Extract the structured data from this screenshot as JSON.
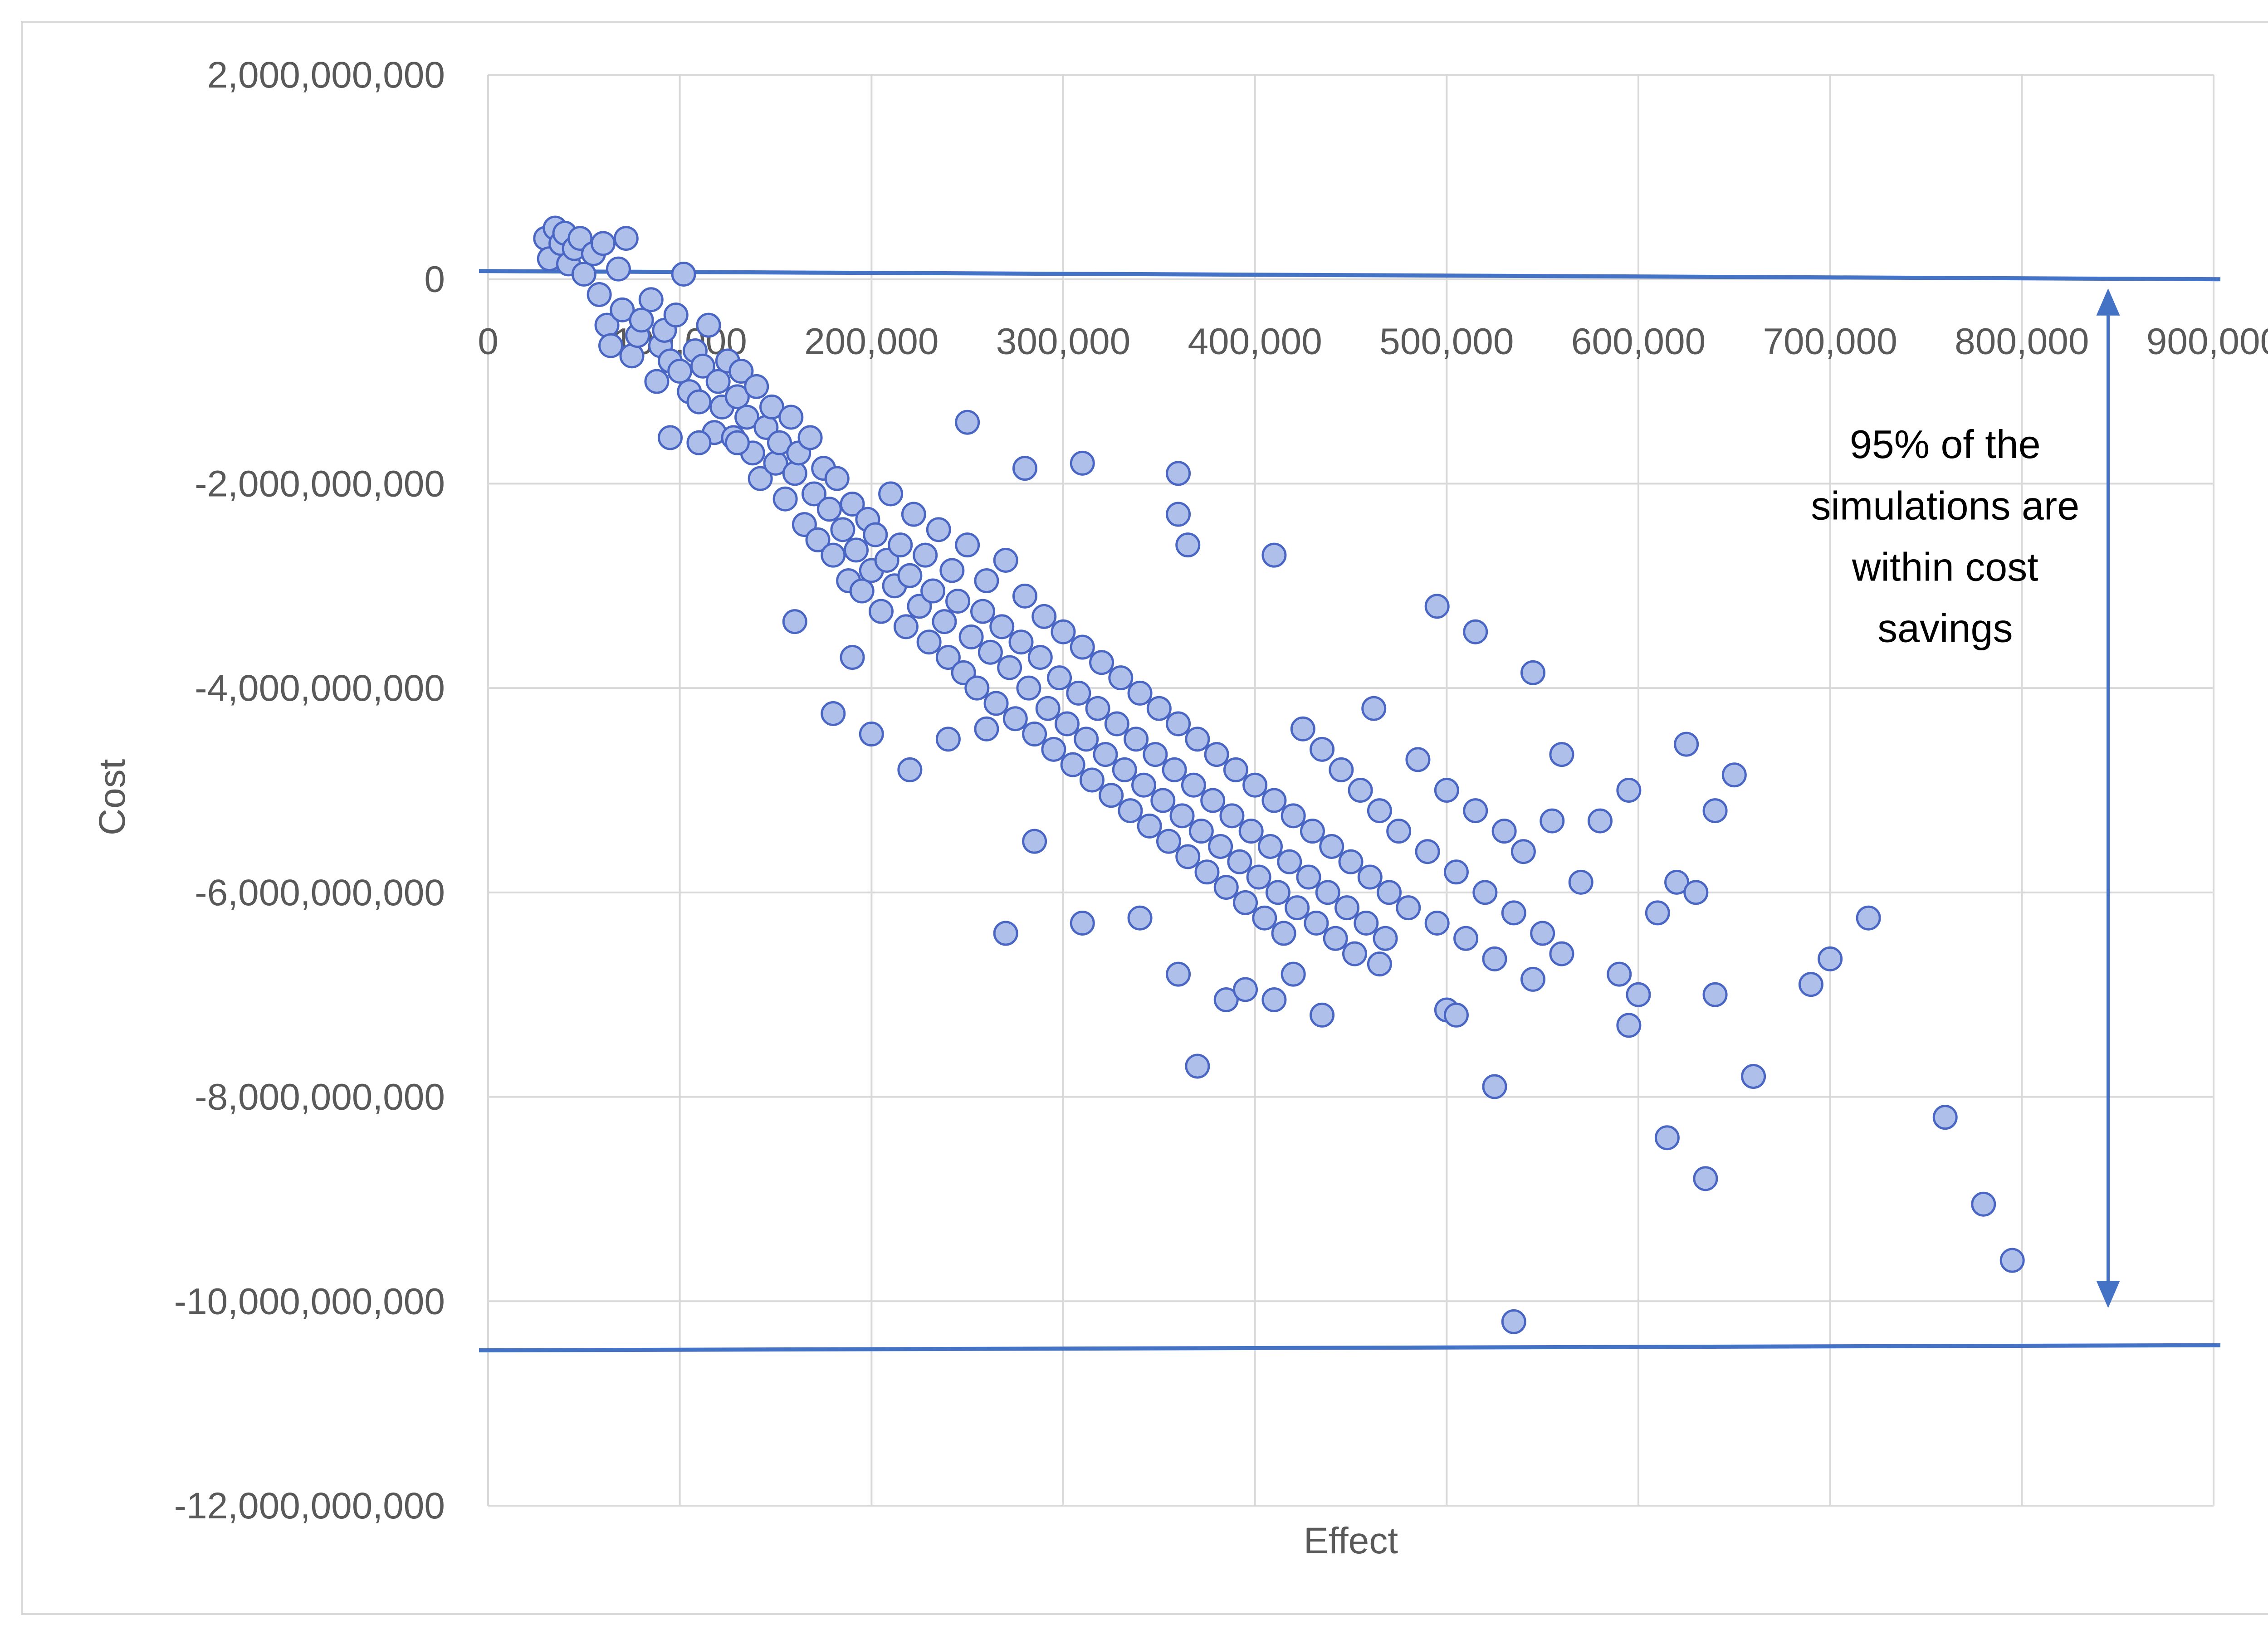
{
  "chart_data": {
    "type": "scatter",
    "title": "",
    "xlabel": "Effect",
    "ylabel": "Cost",
    "xlim": [
      0,
      900000
    ],
    "ylim": [
      -12000000000,
      2000000000
    ],
    "xticks": [
      0,
      100000,
      200000,
      300000,
      400000,
      500000,
      600000,
      700000,
      800000,
      900000
    ],
    "xtick_labels": [
      "0",
      "100,000",
      "200,000",
      "300,000",
      "400,000",
      "500,000",
      "600,000",
      "700,000",
      "800,000",
      "900,000"
    ],
    "yticks": [
      2000000000,
      0,
      -2000000000,
      -4000000000,
      -6000000000,
      -8000000000,
      -10000000000,
      -12000000000
    ],
    "ytick_labels": [
      "2,000,000,000",
      "0",
      "-2,000,000,000",
      "-4,000,000,000",
      "-6,000,000,000",
      "-8,000,000,000",
      "-10,000,000,000",
      "-12,000,000,000"
    ],
    "grid": true,
    "marker_color": "#aebfea",
    "marker_edge_color": "#4a66c4",
    "reference_lines": [
      {
        "name": "upper-bound",
        "x": [
          0,
          900000
        ],
        "y": [
          80000000,
          0
        ]
      },
      {
        "name": "lower-bound",
        "x": [
          0,
          900000
        ],
        "y": [
          -10480000000,
          -10430000000
        ]
      }
    ],
    "arrow": {
      "x": 845000,
      "y_start": 0,
      "y_end": -10000000000
    },
    "annotation_lines": [
      "95% of the",
      "simulations are",
      "within cost",
      "savings"
    ],
    "annotation_x": 760000,
    "annotation_y": [
      -1750000000,
      -2350000000,
      -2950000000,
      -3550000000
    ],
    "series": [
      {
        "name": "Simulations",
        "points": [
          [
            30000,
            400000000
          ],
          [
            32000,
            200000000
          ],
          [
            35000,
            500000000
          ],
          [
            38000,
            350000000
          ],
          [
            40000,
            450000000
          ],
          [
            42000,
            150000000
          ],
          [
            45000,
            300000000
          ],
          [
            48000,
            400000000
          ],
          [
            50000,
            50000000
          ],
          [
            55000,
            250000000
          ],
          [
            58000,
            -150000000
          ],
          [
            60000,
            350000000
          ],
          [
            62000,
            -450000000
          ],
          [
            64000,
            -650000000
          ],
          [
            68000,
            100000000
          ],
          [
            70000,
            -300000000
          ],
          [
            72000,
            400000000
          ],
          [
            75000,
            -750000000
          ],
          [
            78000,
            -550000000
          ],
          [
            80000,
            -400000000
          ],
          [
            85000,
            -200000000
          ],
          [
            88000,
            -1000000000
          ],
          [
            90000,
            -650000000
          ],
          [
            92000,
            -500000000
          ],
          [
            95000,
            -800000000
          ],
          [
            98000,
            -350000000
          ],
          [
            100000,
            -900000000
          ],
          [
            102000,
            50000000
          ],
          [
            105000,
            -1100000000
          ],
          [
            108000,
            -700000000
          ],
          [
            110000,
            -1200000000
          ],
          [
            112000,
            -850000000
          ],
          [
            115000,
            -450000000
          ],
          [
            118000,
            -1500000000
          ],
          [
            120000,
            -1000000000
          ],
          [
            122000,
            -1250000000
          ],
          [
            125000,
            -800000000
          ],
          [
            128000,
            -1550000000
          ],
          [
            130000,
            -1150000000
          ],
          [
            132000,
            -900000000
          ],
          [
            135000,
            -1350000000
          ],
          [
            138000,
            -1700000000
          ],
          [
            140000,
            -1050000000
          ],
          [
            142000,
            -1950000000
          ],
          [
            145000,
            -1450000000
          ],
          [
            148000,
            -1250000000
          ],
          [
            150000,
            -1800000000
          ],
          [
            152000,
            -1600000000
          ],
          [
            155000,
            -2150000000
          ],
          [
            158000,
            -1350000000
          ],
          [
            160000,
            -1900000000
          ],
          [
            162000,
            -1700000000
          ],
          [
            165000,
            -2400000000
          ],
          [
            168000,
            -1550000000
          ],
          [
            170000,
            -2100000000
          ],
          [
            172000,
            -2550000000
          ],
          [
            175000,
            -1850000000
          ],
          [
            178000,
            -2250000000
          ],
          [
            180000,
            -2700000000
          ],
          [
            182000,
            -1950000000
          ],
          [
            185000,
            -2450000000
          ],
          [
            188000,
            -2950000000
          ],
          [
            190000,
            -2200000000
          ],
          [
            192000,
            -2650000000
          ],
          [
            195000,
            -3050000000
          ],
          [
            198000,
            -2350000000
          ],
          [
            200000,
            -2850000000
          ],
          [
            202000,
            -2500000000
          ],
          [
            205000,
            -3250000000
          ],
          [
            208000,
            -2750000000
          ],
          [
            210000,
            -2100000000
          ],
          [
            212000,
            -3000000000
          ],
          [
            215000,
            -2600000000
          ],
          [
            218000,
            -3400000000
          ],
          [
            220000,
            -2900000000
          ],
          [
            222000,
            -2300000000
          ],
          [
            225000,
            -3200000000
          ],
          [
            228000,
            -2700000000
          ],
          [
            230000,
            -3550000000
          ],
          [
            232000,
            -3050000000
          ],
          [
            235000,
            -2450000000
          ],
          [
            238000,
            -3350000000
          ],
          [
            240000,
            -3700000000
          ],
          [
            242000,
            -2850000000
          ],
          [
            245000,
            -3150000000
          ],
          [
            248000,
            -3850000000
          ],
          [
            250000,
            -2600000000
          ],
          [
            252000,
            -3500000000
          ],
          [
            255000,
            -4000000000
          ],
          [
            258000,
            -3250000000
          ],
          [
            260000,
            -2950000000
          ],
          [
            262000,
            -3650000000
          ],
          [
            265000,
            -4150000000
          ],
          [
            268000,
            -3400000000
          ],
          [
            270000,
            -2750000000
          ],
          [
            272000,
            -3800000000
          ],
          [
            275000,
            -4300000000
          ],
          [
            278000,
            -3550000000
          ],
          [
            280000,
            -3100000000
          ],
          [
            282000,
            -4000000000
          ],
          [
            285000,
            -4450000000
          ],
          [
            288000,
            -3700000000
          ],
          [
            290000,
            -3300000000
          ],
          [
            292000,
            -4200000000
          ],
          [
            295000,
            -4600000000
          ],
          [
            298000,
            -3900000000
          ],
          [
            300000,
            -3450000000
          ],
          [
            302000,
            -4350000000
          ],
          [
            305000,
            -4750000000
          ],
          [
            308000,
            -4050000000
          ],
          [
            310000,
            -3600000000
          ],
          [
            312000,
            -4500000000
          ],
          [
            315000,
            -4900000000
          ],
          [
            318000,
            -4200000000
          ],
          [
            320000,
            -3750000000
          ],
          [
            322000,
            -4650000000
          ],
          [
            325000,
            -5050000000
          ],
          [
            328000,
            -4350000000
          ],
          [
            330000,
            -3900000000
          ],
          [
            332000,
            -4800000000
          ],
          [
            335000,
            -5200000000
          ],
          [
            338000,
            -4500000000
          ],
          [
            340000,
            -4050000000
          ],
          [
            342000,
            -4950000000
          ],
          [
            345000,
            -5350000000
          ],
          [
            348000,
            -4650000000
          ],
          [
            350000,
            -4200000000
          ],
          [
            352000,
            -5100000000
          ],
          [
            355000,
            -5500000000
          ],
          [
            358000,
            -4800000000
          ],
          [
            360000,
            -4350000000
          ],
          [
            362000,
            -5250000000
          ],
          [
            365000,
            -5650000000
          ],
          [
            368000,
            -4950000000
          ],
          [
            370000,
            -4500000000
          ],
          [
            372000,
            -5400000000
          ],
          [
            375000,
            -5800000000
          ],
          [
            378000,
            -5100000000
          ],
          [
            380000,
            -4650000000
          ],
          [
            382000,
            -5550000000
          ],
          [
            385000,
            -5950000000
          ],
          [
            388000,
            -5250000000
          ],
          [
            390000,
            -4800000000
          ],
          [
            392000,
            -5700000000
          ],
          [
            395000,
            -6100000000
          ],
          [
            398000,
            -5400000000
          ],
          [
            400000,
            -4950000000
          ],
          [
            402000,
            -5850000000
          ],
          [
            405000,
            -6250000000
          ],
          [
            408000,
            -5550000000
          ],
          [
            410000,
            -5100000000
          ],
          [
            412000,
            -6000000000
          ],
          [
            415000,
            -6400000000
          ],
          [
            418000,
            -5700000000
          ],
          [
            420000,
            -5250000000
          ],
          [
            422000,
            -6150000000
          ],
          [
            425000,
            -4400000000
          ],
          [
            428000,
            -5850000000
          ],
          [
            430000,
            -5400000000
          ],
          [
            432000,
            -6300000000
          ],
          [
            435000,
            -4600000000
          ],
          [
            438000,
            -6000000000
          ],
          [
            440000,
            -5550000000
          ],
          [
            442000,
            -6450000000
          ],
          [
            445000,
            -4800000000
          ],
          [
            448000,
            -6150000000
          ],
          [
            450000,
            -5700000000
          ],
          [
            452000,
            -6600000000
          ],
          [
            455000,
            -5000000000
          ],
          [
            458000,
            -6300000000
          ],
          [
            460000,
            -5850000000
          ],
          [
            462000,
            -4200000000
          ],
          [
            465000,
            -5200000000
          ],
          [
            468000,
            -6450000000
          ],
          [
            470000,
            -6000000000
          ],
          [
            475000,
            -5400000000
          ],
          [
            480000,
            -6150000000
          ],
          [
            485000,
            -4700000000
          ],
          [
            490000,
            -5600000000
          ],
          [
            495000,
            -6300000000
          ],
          [
            500000,
            -5000000000
          ],
          [
            505000,
            -5800000000
          ],
          [
            510000,
            -6450000000
          ],
          [
            515000,
            -5200000000
          ],
          [
            520000,
            -6000000000
          ],
          [
            525000,
            -6650000000
          ],
          [
            530000,
            -5400000000
          ],
          [
            535000,
            -6200000000
          ],
          [
            540000,
            -5600000000
          ],
          [
            545000,
            -6850000000
          ],
          [
            550000,
            -6400000000
          ],
          [
            555000,
            -5300000000
          ],
          [
            560000,
            -6600000000
          ],
          [
            570000,
            -5900000000
          ],
          [
            580000,
            -5300000000
          ],
          [
            590000,
            -6800000000
          ],
          [
            600000,
            -7000000000
          ],
          [
            610000,
            -6200000000
          ],
          [
            620000,
            -5900000000
          ],
          [
            630000,
            -6000000000
          ],
          [
            640000,
            -7000000000
          ],
          [
            650000,
            -4850000000
          ],
          [
            660000,
            -7800000000
          ],
          [
            690000,
            -6900000000
          ],
          [
            700000,
            -6650000000
          ],
          [
            720000,
            -6250000000
          ],
          [
            760000,
            -8200000000
          ],
          [
            780000,
            -9050000000
          ],
          [
            795000,
            -9600000000
          ],
          [
            160000,
            -3350000000
          ],
          [
            180000,
            -4250000000
          ],
          [
            190000,
            -3700000000
          ],
          [
            200000,
            -4450000000
          ],
          [
            220000,
            -4800000000
          ],
          [
            240000,
            -4500000000
          ],
          [
            260000,
            -4400000000
          ],
          [
            270000,
            -6400000000
          ],
          [
            285000,
            -5500000000
          ],
          [
            310000,
            -6300000000
          ],
          [
            340000,
            -6250000000
          ],
          [
            360000,
            -6800000000
          ],
          [
            370000,
            -7700000000
          ],
          [
            385000,
            -7050000000
          ],
          [
            395000,
            -6950000000
          ],
          [
            410000,
            -7050000000
          ],
          [
            420000,
            -6800000000
          ],
          [
            435000,
            -7200000000
          ],
          [
            465000,
            -6700000000
          ],
          [
            500000,
            -7150000000
          ],
          [
            505000,
            -7200000000
          ],
          [
            525000,
            -7900000000
          ],
          [
            535000,
            -10200000000
          ],
          [
            595000,
            -7300000000
          ],
          [
            615000,
            -8400000000
          ],
          [
            635000,
            -8800000000
          ],
          [
            545000,
            -3850000000
          ],
          [
            560000,
            -4650000000
          ],
          [
            595000,
            -5000000000
          ],
          [
            625000,
            -4550000000
          ],
          [
            640000,
            -5200000000
          ],
          [
            495000,
            -3200000000
          ],
          [
            515000,
            -3450000000
          ],
          [
            410000,
            -2700000000
          ],
          [
            360000,
            -1900000000
          ],
          [
            310000,
            -1800000000
          ],
          [
            280000,
            -1850000000
          ],
          [
            250000,
            -1400000000
          ],
          [
            360000,
            -2300000000
          ],
          [
            365000,
            -2600000000
          ],
          [
            95000,
            -1550000000
          ],
          [
            110000,
            -1600000000
          ],
          [
            130000,
            -1600000000
          ]
        ]
      }
    ]
  }
}
